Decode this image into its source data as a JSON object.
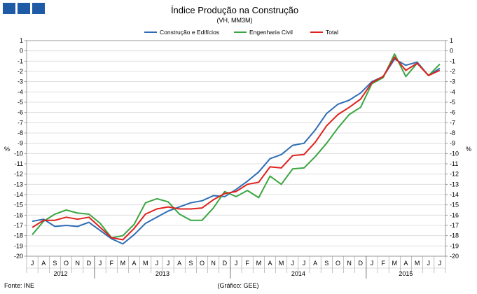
{
  "chart_data": {
    "type": "line",
    "title": "Índice Produção na Construção",
    "subtitle": "(VH, MM3M)",
    "ylabel_left": "%",
    "ylabel_right": "%",
    "ylim": [
      -20,
      1
    ],
    "yticks": [
      1,
      0,
      -1,
      -2,
      -3,
      -4,
      -5,
      -6,
      -7,
      -8,
      -9,
      -10,
      -11,
      -12,
      -13,
      -14,
      -15,
      -16,
      -17,
      -18,
      -19,
      -20
    ],
    "month_labels": [
      "J",
      "A",
      "S",
      "O",
      "N",
      "D",
      "J",
      "F",
      "M",
      "A",
      "M",
      "J",
      "J",
      "A",
      "S",
      "O",
      "N",
      "D",
      "J",
      "F",
      "M",
      "A",
      "M",
      "J",
      "J",
      "A",
      "S",
      "O",
      "N",
      "D",
      "J",
      "F",
      "M",
      "A",
      "M",
      "J",
      "J"
    ],
    "years": [
      {
        "label": "2012",
        "start": 0,
        "end": 5
      },
      {
        "label": "2013",
        "start": 6,
        "end": 17
      },
      {
        "label": "2014",
        "start": 18,
        "end": 29
      },
      {
        "label": "2015",
        "start": 30,
        "end": 36
      }
    ],
    "series": [
      {
        "name": "Construção e Edifícios",
        "color": "#2e6db4",
        "values": [
          -16.6,
          -16.4,
          -17.1,
          -17.0,
          -17.1,
          -16.7,
          -17.5,
          -18.3,
          -18.8,
          -17.9,
          -16.8,
          -16.2,
          -15.6,
          -15.2,
          -14.8,
          -14.6,
          -14.1,
          -14.2,
          -13.5,
          -12.7,
          -11.8,
          -10.5,
          -10.1,
          -9.2,
          -9.0,
          -7.7,
          -6.1,
          -5.2,
          -4.8,
          -4.1,
          -3.0,
          -2.5,
          -0.8,
          -1.4,
          -1.1,
          -2.4,
          -1.7
        ]
      },
      {
        "name": "Engenharia Civil",
        "color": "#3aa641",
        "values": [
          -17.9,
          -16.6,
          -15.9,
          -15.5,
          -15.8,
          -15.9,
          -16.8,
          -18.2,
          -18.0,
          -16.9,
          -14.8,
          -14.4,
          -14.7,
          -15.9,
          -16.5,
          -16.5,
          -15.3,
          -13.7,
          -14.2,
          -13.6,
          -14.3,
          -12.2,
          -13.0,
          -11.5,
          -11.4,
          -10.3,
          -9.0,
          -7.5,
          -6.2,
          -5.5,
          -3.2,
          -2.6,
          -0.3,
          -2.5,
          -1.2,
          -2.4,
          -1.3
        ]
      },
      {
        "name": "Total",
        "color": "#e0211d",
        "values": [
          -17.2,
          -16.5,
          -16.5,
          -16.2,
          -16.4,
          -16.2,
          -17.2,
          -18.2,
          -18.4,
          -17.3,
          -15.9,
          -15.4,
          -15.2,
          -15.4,
          -15.4,
          -15.3,
          -14.5,
          -13.9,
          -13.7,
          -13.0,
          -12.8,
          -11.3,
          -11.4,
          -10.2,
          -10.1,
          -8.9,
          -7.3,
          -6.2,
          -5.5,
          -4.7,
          -3.1,
          -2.5,
          -0.6,
          -1.9,
          -1.2,
          -2.4,
          -1.9
        ]
      }
    ]
  },
  "footer": {
    "source": "Fonte: INE",
    "credit": "(Gráfico: GEE)"
  }
}
